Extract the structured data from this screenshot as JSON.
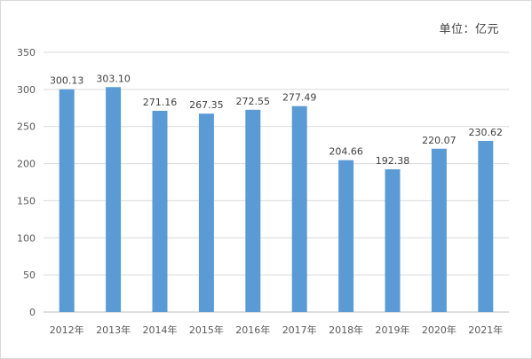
{
  "unit_label": "单位：亿元",
  "colors": {
    "bar": "#5b9bd5",
    "gridline": "#d9d9d9",
    "axis": "#bfbfbf"
  },
  "chart_data": {
    "type": "bar",
    "categories": [
      "2012年",
      "2013年",
      "2014年",
      "2015年",
      "2016年",
      "2017年",
      "2018年",
      "2019年",
      "2020年",
      "2021年"
    ],
    "values": [
      300.13,
      303.1,
      271.16,
      267.35,
      272.55,
      277.49,
      204.66,
      192.38,
      220.07,
      230.62
    ],
    "value_labels": [
      "300.13",
      "303.10",
      "271.16",
      "267.35",
      "272.55",
      "277.49",
      "204.66",
      "192.38",
      "220.07",
      "230.62"
    ],
    "title": "",
    "xlabel": "",
    "ylabel": "",
    "ylim": [
      0,
      350
    ],
    "yticks": [
      0,
      50,
      100,
      150,
      200,
      250,
      300,
      350
    ],
    "grid": true,
    "legend": "none"
  }
}
